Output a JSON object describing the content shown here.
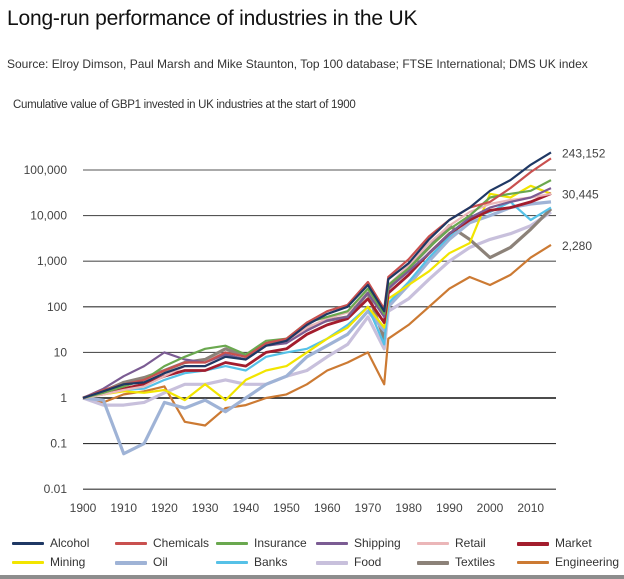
{
  "chart_data": {
    "type": "line",
    "title": "Long-run performance of industries in the UK",
    "source": "Source: Elroy Dimson, Paul Marsh and Mike Staunton, Top 100 database; FTSE International; DMS UK index",
    "subtitle": "Cumulative value of GBP1 invested in UK industries at the start of 1900",
    "xlabel": "",
    "ylabel": "",
    "yscale": "log",
    "ylim": [
      0.01,
      243152
    ],
    "xlim": [
      1900,
      2015
    ],
    "grid": true,
    "legend_position": "bottom",
    "x_ticks": [
      "1900",
      "1910",
      "1920",
      "1930",
      "1940",
      "1950",
      "1960",
      "1970",
      "1980",
      "1990",
      "2000",
      "2010"
    ],
    "y_ticks": [
      {
        "value": 100000,
        "label": "100,000"
      },
      {
        "value": 10000,
        "label": "10,000"
      },
      {
        "value": 1000,
        "label": "1,000"
      },
      {
        "value": 100,
        "label": "100"
      },
      {
        "value": 10,
        "label": "10"
      },
      {
        "value": 1,
        "label": "1"
      },
      {
        "value": 0.1,
        "label": "0.1"
      },
      {
        "value": 0.01,
        "label": "0.01"
      }
    ],
    "end_labels": [
      {
        "value": 243152,
        "label": "243,152"
      },
      {
        "value": 30445,
        "label": "30,445"
      },
      {
        "value": 2280,
        "label": "2,280"
      }
    ],
    "x": [
      1900,
      1905,
      1910,
      1915,
      1920,
      1925,
      1930,
      1935,
      1940,
      1945,
      1950,
      1955,
      1960,
      1965,
      1970,
      1974,
      1975,
      1980,
      1985,
      1990,
      1995,
      2000,
      2005,
      2010,
      2015
    ],
    "series": [
      {
        "name": "Alcohol",
        "color": "#1f3864",
        "values": [
          1,
          1.4,
          2,
          2.2,
          3.5,
          5,
          5,
          8,
          7,
          14,
          18,
          40,
          70,
          100,
          300,
          80,
          400,
          900,
          3000,
          8000,
          15000,
          35000,
          60000,
          130000,
          243152
        ]
      },
      {
        "name": "Chemicals",
        "color": "#c9504f",
        "values": [
          1,
          1.5,
          2,
          2.5,
          4,
          6,
          6,
          10,
          8,
          16,
          20,
          45,
          80,
          110,
          350,
          90,
          450,
          1100,
          3500,
          8000,
          15000,
          20000,
          40000,
          90000,
          180000
        ]
      },
      {
        "name": "Insurance",
        "color": "#6aa84f",
        "values": [
          1,
          1.3,
          1.8,
          2.5,
          5,
          8,
          12,
          14,
          9,
          18,
          20,
          45,
          60,
          80,
          250,
          70,
          300,
          700,
          2000,
          5000,
          10000,
          25000,
          30000,
          35000,
          60000
        ]
      },
      {
        "name": "Shipping",
        "color": "#7b5c93",
        "values": [
          1,
          1.6,
          3,
          5,
          10,
          7,
          6,
          9,
          7,
          14,
          16,
          30,
          50,
          60,
          200,
          60,
          250,
          600,
          1500,
          4000,
          9000,
          15000,
          20000,
          25000,
          40000
        ]
      },
      {
        "name": "Retail",
        "color": "#ebb6b8",
        "values": [
          1,
          1.2,
          1.5,
          1.8,
          3,
          5,
          5,
          9,
          7,
          14,
          16,
          35,
          55,
          75,
          250,
          70,
          300,
          800,
          2500,
          6000,
          12000,
          18000,
          22000,
          25000,
          30000
        ]
      },
      {
        "name": "Market",
        "color": "#a31d2d",
        "values": [
          1,
          1.3,
          1.6,
          2,
          3,
          4,
          4,
          6,
          5,
          10,
          12,
          25,
          40,
          55,
          150,
          45,
          200,
          500,
          1500,
          4000,
          8000,
          13000,
          15000,
          20000,
          30445
        ]
      },
      {
        "name": "Mining",
        "color": "#f2e500",
        "values": [
          1,
          1.2,
          1.4,
          1.3,
          1.5,
          0.9,
          2,
          0.9,
          2.5,
          4,
          5,
          10,
          20,
          35,
          100,
          35,
          150,
          300,
          600,
          1500,
          2500,
          30000,
          25000,
          45000,
          30000
        ]
      },
      {
        "name": "Oil",
        "color": "#9fb3d6",
        "values": [
          1,
          0.9,
          0.06,
          0.1,
          0.8,
          0.6,
          0.9,
          0.5,
          1,
          2,
          3,
          8,
          14,
          25,
          80,
          30,
          100,
          300,
          1000,
          3000,
          7000,
          10000,
          15000,
          18000,
          20000
        ]
      },
      {
        "name": "Banks",
        "color": "#56c1e7",
        "values": [
          1,
          1.2,
          1.5,
          1.6,
          2.5,
          3.5,
          4,
          5,
          4,
          8,
          10,
          12,
          20,
          40,
          100,
          15,
          120,
          350,
          1200,
          3500,
          9000,
          12000,
          20000,
          8000,
          15000
        ]
      },
      {
        "name": "Food",
        "color": "#c8c0dc",
        "values": [
          1,
          0.7,
          0.7,
          0.8,
          1.3,
          2,
          2,
          2.5,
          2,
          2,
          3,
          4,
          8,
          15,
          60,
          12,
          80,
          150,
          400,
          1000,
          2000,
          3000,
          4000,
          6000,
          12000
        ]
      },
      {
        "name": "Textiles",
        "color": "#8c8279",
        "values": [
          1,
          1.4,
          2.2,
          2.8,
          4,
          6,
          7,
          12,
          8,
          15,
          18,
          35,
          50,
          60,
          200,
          20,
          250,
          700,
          2000,
          6000,
          3000,
          1200,
          2000,
          5000,
          14000
        ]
      },
      {
        "name": "Engineering",
        "color": "#cc7a33",
        "values": [
          1,
          0.8,
          1.2,
          1.4,
          1.8,
          0.3,
          0.25,
          0.6,
          0.7,
          1,
          1.2,
          2,
          4,
          6,
          10,
          2,
          20,
          40,
          100,
          250,
          450,
          300,
          500,
          1200,
          2280
        ]
      }
    ]
  }
}
